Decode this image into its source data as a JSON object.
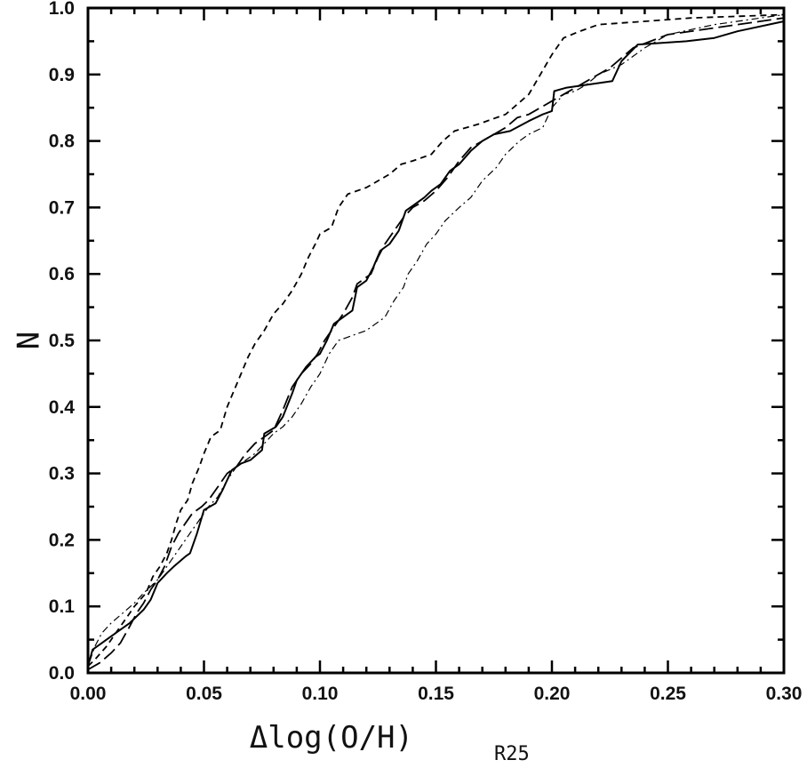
{
  "chart_data": {
    "type": "line",
    "title": "",
    "xlabel": "Δlog(O/H)",
    "xlabel_subscript": "R25",
    "ylabel": "N",
    "xlim": [
      0.0,
      0.3
    ],
    "ylim": [
      0.0,
      1.0
    ],
    "grid": false,
    "legend": "none",
    "x_ticks": [
      0.0,
      0.05,
      0.1,
      0.15,
      0.2,
      0.25,
      0.3
    ],
    "x_tick_labels": [
      "0.00",
      "0.05",
      "0.10",
      "0.15",
      "0.20",
      "0.25",
      "0.30"
    ],
    "y_ticks": [
      0.0,
      0.1,
      0.2,
      0.3,
      0.4,
      0.5,
      0.6,
      0.7,
      0.8,
      0.9,
      1.0
    ],
    "y_tick_labels": [
      "0.0",
      "0.1",
      "0.2",
      "0.3",
      "0.4",
      "0.5",
      "0.6",
      "0.7",
      "0.8",
      "0.9",
      "1.0"
    ],
    "series": [
      {
        "style": "solid",
        "color": "#000000",
        "points": [
          [
            0.0,
            0.01
          ],
          [
            0.002,
            0.035
          ],
          [
            0.006,
            0.045
          ],
          [
            0.012,
            0.06
          ],
          [
            0.018,
            0.075
          ],
          [
            0.024,
            0.095
          ],
          [
            0.027,
            0.11
          ],
          [
            0.03,
            0.135
          ],
          [
            0.034,
            0.15
          ],
          [
            0.037,
            0.16
          ],
          [
            0.042,
            0.175
          ],
          [
            0.044,
            0.18
          ],
          [
            0.047,
            0.21
          ],
          [
            0.05,
            0.245
          ],
          [
            0.055,
            0.255
          ],
          [
            0.058,
            0.275
          ],
          [
            0.062,
            0.305
          ],
          [
            0.066,
            0.315
          ],
          [
            0.07,
            0.32
          ],
          [
            0.075,
            0.335
          ],
          [
            0.076,
            0.36
          ],
          [
            0.081,
            0.37
          ],
          [
            0.084,
            0.385
          ],
          [
            0.088,
            0.42
          ],
          [
            0.09,
            0.44
          ],
          [
            0.094,
            0.46
          ],
          [
            0.098,
            0.475
          ],
          [
            0.1,
            0.48
          ],
          [
            0.103,
            0.5
          ],
          [
            0.106,
            0.525
          ],
          [
            0.11,
            0.535
          ],
          [
            0.114,
            0.545
          ],
          [
            0.116,
            0.58
          ],
          [
            0.12,
            0.59
          ],
          [
            0.123,
            0.61
          ],
          [
            0.126,
            0.635
          ],
          [
            0.13,
            0.645
          ],
          [
            0.134,
            0.665
          ],
          [
            0.137,
            0.695
          ],
          [
            0.141,
            0.705
          ],
          [
            0.145,
            0.715
          ],
          [
            0.148,
            0.725
          ],
          [
            0.152,
            0.735
          ],
          [
            0.156,
            0.755
          ],
          [
            0.16,
            0.765
          ],
          [
            0.165,
            0.785
          ],
          [
            0.17,
            0.8
          ],
          [
            0.175,
            0.81
          ],
          [
            0.182,
            0.815
          ],
          [
            0.19,
            0.83
          ],
          [
            0.196,
            0.84
          ],
          [
            0.2,
            0.845
          ],
          [
            0.201,
            0.875
          ],
          [
            0.206,
            0.88
          ],
          [
            0.226,
            0.89
          ],
          [
            0.23,
            0.92
          ],
          [
            0.237,
            0.945
          ],
          [
            0.258,
            0.95
          ],
          [
            0.27,
            0.955
          ],
          [
            0.28,
            0.965
          ],
          [
            0.3,
            0.98
          ]
        ]
      },
      {
        "style": "short-dash",
        "color": "#000000",
        "points": [
          [
            0.0,
            0.01
          ],
          [
            0.003,
            0.02
          ],
          [
            0.008,
            0.04
          ],
          [
            0.012,
            0.06
          ],
          [
            0.016,
            0.08
          ],
          [
            0.02,
            0.1
          ],
          [
            0.025,
            0.12
          ],
          [
            0.028,
            0.145
          ],
          [
            0.031,
            0.16
          ],
          [
            0.034,
            0.18
          ],
          [
            0.036,
            0.2
          ],
          [
            0.038,
            0.225
          ],
          [
            0.04,
            0.245
          ],
          [
            0.043,
            0.26
          ],
          [
            0.045,
            0.285
          ],
          [
            0.048,
            0.31
          ],
          [
            0.05,
            0.33
          ],
          [
            0.053,
            0.355
          ],
          [
            0.057,
            0.365
          ],
          [
            0.06,
            0.4
          ],
          [
            0.063,
            0.425
          ],
          [
            0.066,
            0.45
          ],
          [
            0.069,
            0.475
          ],
          [
            0.072,
            0.495
          ],
          [
            0.076,
            0.515
          ],
          [
            0.08,
            0.54
          ],
          [
            0.084,
            0.555
          ],
          [
            0.088,
            0.575
          ],
          [
            0.092,
            0.6
          ],
          [
            0.095,
            0.625
          ],
          [
            0.098,
            0.645
          ],
          [
            0.1,
            0.66
          ],
          [
            0.105,
            0.67
          ],
          [
            0.108,
            0.7
          ],
          [
            0.112,
            0.72
          ],
          [
            0.12,
            0.73
          ],
          [
            0.13,
            0.75
          ],
          [
            0.135,
            0.765
          ],
          [
            0.14,
            0.77
          ],
          [
            0.148,
            0.78
          ],
          [
            0.153,
            0.8
          ],
          [
            0.158,
            0.815
          ],
          [
            0.168,
            0.825
          ],
          [
            0.18,
            0.84
          ],
          [
            0.19,
            0.87
          ],
          [
            0.195,
            0.9
          ],
          [
            0.2,
            0.93
          ],
          [
            0.205,
            0.955
          ],
          [
            0.212,
            0.965
          ],
          [
            0.22,
            0.975
          ],
          [
            0.24,
            0.98
          ],
          [
            0.26,
            0.985
          ],
          [
            0.3,
            0.99
          ]
        ]
      },
      {
        "style": "long-dash",
        "color": "#000000",
        "points": [
          [
            0.0,
            0.005
          ],
          [
            0.005,
            0.015
          ],
          [
            0.01,
            0.03
          ],
          [
            0.014,
            0.045
          ],
          [
            0.018,
            0.07
          ],
          [
            0.021,
            0.09
          ],
          [
            0.024,
            0.105
          ],
          [
            0.027,
            0.125
          ],
          [
            0.03,
            0.14
          ],
          [
            0.033,
            0.16
          ],
          [
            0.036,
            0.19
          ],
          [
            0.039,
            0.21
          ],
          [
            0.042,
            0.225
          ],
          [
            0.045,
            0.24
          ],
          [
            0.049,
            0.25
          ],
          [
            0.052,
            0.26
          ],
          [
            0.056,
            0.28
          ],
          [
            0.06,
            0.3
          ],
          [
            0.064,
            0.31
          ],
          [
            0.068,
            0.33
          ],
          [
            0.072,
            0.345
          ],
          [
            0.076,
            0.355
          ],
          [
            0.08,
            0.365
          ],
          [
            0.084,
            0.395
          ],
          [
            0.088,
            0.43
          ],
          [
            0.092,
            0.45
          ],
          [
            0.096,
            0.465
          ],
          [
            0.099,
            0.48
          ],
          [
            0.102,
            0.5
          ],
          [
            0.106,
            0.52
          ],
          [
            0.11,
            0.54
          ],
          [
            0.114,
            0.565
          ],
          [
            0.116,
            0.585
          ],
          [
            0.122,
            0.6
          ],
          [
            0.125,
            0.625
          ],
          [
            0.128,
            0.645
          ],
          [
            0.132,
            0.665
          ],
          [
            0.136,
            0.685
          ],
          [
            0.14,
            0.7
          ],
          [
            0.145,
            0.71
          ],
          [
            0.15,
            0.725
          ],
          [
            0.155,
            0.745
          ],
          [
            0.16,
            0.77
          ],
          [
            0.165,
            0.79
          ],
          [
            0.17,
            0.8
          ],
          [
            0.175,
            0.81
          ],
          [
            0.18,
            0.82
          ],
          [
            0.185,
            0.835
          ],
          [
            0.19,
            0.84
          ],
          [
            0.195,
            0.85
          ],
          [
            0.2,
            0.86
          ],
          [
            0.205,
            0.87
          ],
          [
            0.21,
            0.88
          ],
          [
            0.215,
            0.89
          ],
          [
            0.225,
            0.91
          ],
          [
            0.235,
            0.94
          ],
          [
            0.25,
            0.96
          ],
          [
            0.27,
            0.97
          ],
          [
            0.3,
            0.985
          ]
        ]
      },
      {
        "style": "dot-dash",
        "color": "#000000",
        "points": [
          [
            0.0,
            0.01
          ],
          [
            0.003,
            0.04
          ],
          [
            0.006,
            0.06
          ],
          [
            0.01,
            0.075
          ],
          [
            0.015,
            0.09
          ],
          [
            0.02,
            0.105
          ],
          [
            0.024,
            0.12
          ],
          [
            0.027,
            0.13
          ],
          [
            0.03,
            0.14
          ],
          [
            0.033,
            0.155
          ],
          [
            0.036,
            0.17
          ],
          [
            0.04,
            0.19
          ],
          [
            0.044,
            0.21
          ],
          [
            0.048,
            0.23
          ],
          [
            0.052,
            0.25
          ],
          [
            0.056,
            0.265
          ],
          [
            0.06,
            0.29
          ],
          [
            0.064,
            0.31
          ],
          [
            0.068,
            0.32
          ],
          [
            0.072,
            0.33
          ],
          [
            0.076,
            0.345
          ],
          [
            0.08,
            0.36
          ],
          [
            0.084,
            0.37
          ],
          [
            0.088,
            0.385
          ],
          [
            0.092,
            0.405
          ],
          [
            0.096,
            0.43
          ],
          [
            0.1,
            0.45
          ],
          [
            0.104,
            0.48
          ],
          [
            0.108,
            0.5
          ],
          [
            0.112,
            0.505
          ],
          [
            0.116,
            0.51
          ],
          [
            0.12,
            0.515
          ],
          [
            0.124,
            0.525
          ],
          [
            0.128,
            0.535
          ],
          [
            0.132,
            0.56
          ],
          [
            0.136,
            0.58
          ],
          [
            0.138,
            0.6
          ],
          [
            0.142,
            0.62
          ],
          [
            0.146,
            0.645
          ],
          [
            0.15,
            0.66
          ],
          [
            0.154,
            0.68
          ],
          [
            0.16,
            0.7
          ],
          [
            0.165,
            0.715
          ],
          [
            0.17,
            0.74
          ],
          [
            0.176,
            0.76
          ],
          [
            0.18,
            0.78
          ],
          [
            0.186,
            0.8
          ],
          [
            0.19,
            0.81
          ],
          [
            0.196,
            0.82
          ],
          [
            0.2,
            0.85
          ],
          [
            0.205,
            0.87
          ],
          [
            0.21,
            0.875
          ],
          [
            0.215,
            0.885
          ],
          [
            0.22,
            0.9
          ],
          [
            0.23,
            0.915
          ],
          [
            0.24,
            0.94
          ],
          [
            0.25,
            0.96
          ],
          [
            0.27,
            0.975
          ],
          [
            0.3,
            0.99
          ]
        ]
      }
    ]
  }
}
